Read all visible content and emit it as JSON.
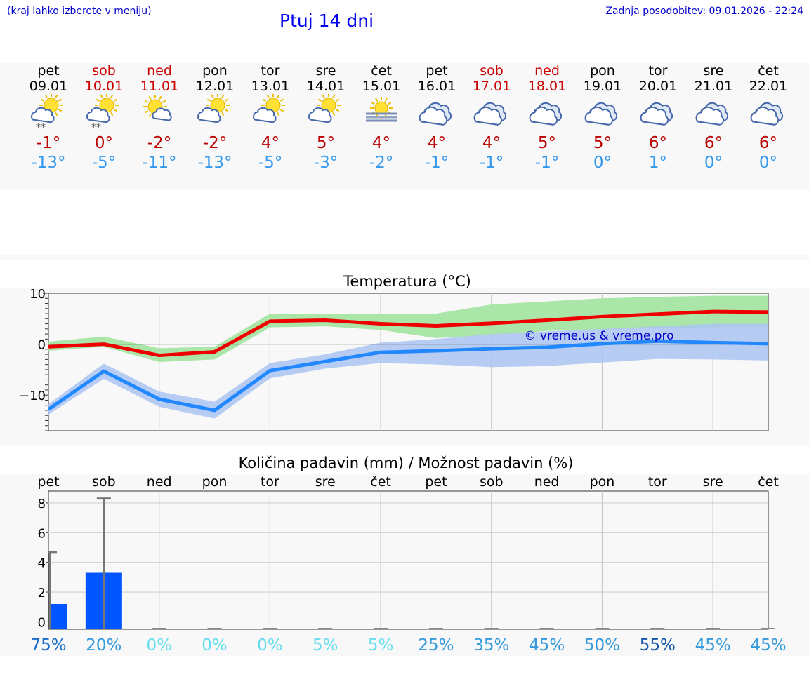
{
  "header": {
    "note": "(kraj lahko izberete v meniju)",
    "title": "Ptuj 14 dni",
    "updated": "Zadnja posodobitev: 09.01.2026 - 22:24"
  },
  "days": [
    {
      "name": "pet",
      "date": "09.01",
      "icon": "partly-sunny-snow-icon",
      "hi": "-1°",
      "lo": "-13°",
      "weekend": false
    },
    {
      "name": "sob",
      "date": "10.01",
      "icon": "partly-sunny-snow-icon",
      "hi": "0°",
      "lo": "-5°",
      "weekend": true
    },
    {
      "name": "ned",
      "date": "11.01",
      "icon": "sun-small-cloud-icon",
      "hi": "-2°",
      "lo": "-11°",
      "weekend": true
    },
    {
      "name": "pon",
      "date": "12.01",
      "icon": "partly-sunny-icon",
      "hi": "-2°",
      "lo": "-13°",
      "weekend": false
    },
    {
      "name": "tor",
      "date": "13.01",
      "icon": "partly-sunny-icon",
      "hi": "4°",
      "lo": "-5°",
      "weekend": false
    },
    {
      "name": "sre",
      "date": "14.01",
      "icon": "partly-sunny-icon",
      "hi": "5°",
      "lo": "-3°",
      "weekend": false
    },
    {
      "name": "čet",
      "date": "15.01",
      "icon": "sun-fog-icon",
      "hi": "4°",
      "lo": "-2°",
      "weekend": false
    },
    {
      "name": "pet",
      "date": "16.01",
      "icon": "cloudy-icon",
      "hi": "4°",
      "lo": "-1°",
      "weekend": false
    },
    {
      "name": "sob",
      "date": "17.01",
      "icon": "cloudy-icon",
      "hi": "4°",
      "lo": "-1°",
      "weekend": true
    },
    {
      "name": "ned",
      "date": "18.01",
      "icon": "cloudy-icon",
      "hi": "5°",
      "lo": "-1°",
      "weekend": true
    },
    {
      "name": "pon",
      "date": "19.01",
      "icon": "cloudy-icon",
      "hi": "5°",
      "lo": "0°",
      "weekend": false
    },
    {
      "name": "tor",
      "date": "20.01",
      "icon": "cloudy-icon",
      "hi": "6°",
      "lo": "1°",
      "weekend": false
    },
    {
      "name": "sre",
      "date": "21.01",
      "icon": "cloudy-icon",
      "hi": "6°",
      "lo": "0°",
      "weekend": false
    },
    {
      "name": "čet",
      "date": "22.01",
      "icon": "cloudy-icon",
      "hi": "6°",
      "lo": "0°",
      "weekend": false
    }
  ],
  "colors": {
    "max": "#ee0000",
    "min": "#2288ff",
    "max_band": "#aae6a8",
    "min_band": "#aac4f2",
    "bar": "#0055ff",
    "weekend": "#cc0000"
  },
  "chart_data": [
    {
      "type": "line",
      "title": "Temperatura (°C)",
      "watermark": "© vreme.us & vreme.pro",
      "ylim": [
        -17,
        10
      ],
      "yticks": [
        10,
        0,
        -10
      ],
      "x": [
        "pet",
        "sob",
        "ned",
        "pon",
        "tor",
        "sre",
        "čet",
        "pet",
        "sob",
        "ned",
        "pon",
        "tor",
        "sre",
        "čet"
      ],
      "series": [
        {
          "name": "max",
          "values": [
            -0.5,
            0,
            -2.2,
            -1.5,
            4.5,
            4.7,
            4,
            3.6,
            4.1,
            4.7,
            5.4,
            5.9,
            6.4,
            6.3
          ],
          "band_low": [
            -1.3,
            -0.5,
            -3.5,
            -3,
            3.3,
            3.5,
            2.8,
            1.2,
            1.8,
            2.6,
            2.9,
            3.2,
            3.3,
            3.4
          ],
          "band_high": [
            0.5,
            1.5,
            -0.8,
            -0.5,
            6,
            6,
            6,
            6,
            7.8,
            8.4,
            9,
            9.3,
            9.5,
            9.5
          ]
        },
        {
          "name": "min",
          "values": [
            -12.8,
            -5.3,
            -10.8,
            -13,
            -5.2,
            -3.4,
            -1.6,
            -1.3,
            -0.9,
            -0.6,
            0.1,
            0.6,
            0.3,
            0.1
          ],
          "band_low": [
            -13.8,
            -6.8,
            -12.3,
            -14.6,
            -6.7,
            -4.8,
            -3.7,
            -4,
            -4.5,
            -4.3,
            -3.6,
            -2.9,
            -3,
            -3.2
          ],
          "band_high": [
            -11.8,
            -3.8,
            -9.3,
            -11.3,
            -3.7,
            -2,
            0.3,
            1,
            2,
            2.5,
            3,
            3.5,
            4,
            4
          ]
        }
      ]
    },
    {
      "type": "bar",
      "title": "Količina padavin (mm) / Možnost padavin (%)",
      "ylim": [
        -0.5,
        8.8
      ],
      "yticks": [
        0,
        2,
        4,
        6,
        8
      ],
      "categories": [
        "pet",
        "sob",
        "ned",
        "pon",
        "tor",
        "sre",
        "čet",
        "pet",
        "sob",
        "ned",
        "pon",
        "tor",
        "sre",
        "čet"
      ],
      "values": [
        1.2,
        3.3,
        0,
        0,
        0,
        0,
        0,
        0,
        0,
        0,
        0,
        0,
        0,
        0
      ],
      "error_high": [
        4.7,
        8.3,
        null,
        null,
        null,
        null,
        null,
        null,
        null,
        null,
        null,
        null,
        null,
        null
      ],
      "probability": [
        "75%",
        "20%",
        "0%",
        "0%",
        "0%",
        "5%",
        "5%",
        "25%",
        "35%",
        "45%",
        "50%",
        "55%",
        "45%",
        "45%"
      ],
      "probability_colors": [
        "#1a6bc7",
        "#3399dd",
        "#66ddee",
        "#66ddee",
        "#66ddee",
        "#66ddee",
        "#66ddee",
        "#3399dd",
        "#3399dd",
        "#3399dd",
        "#3399dd",
        "#1155aa",
        "#3399dd",
        "#3399dd"
      ]
    }
  ]
}
